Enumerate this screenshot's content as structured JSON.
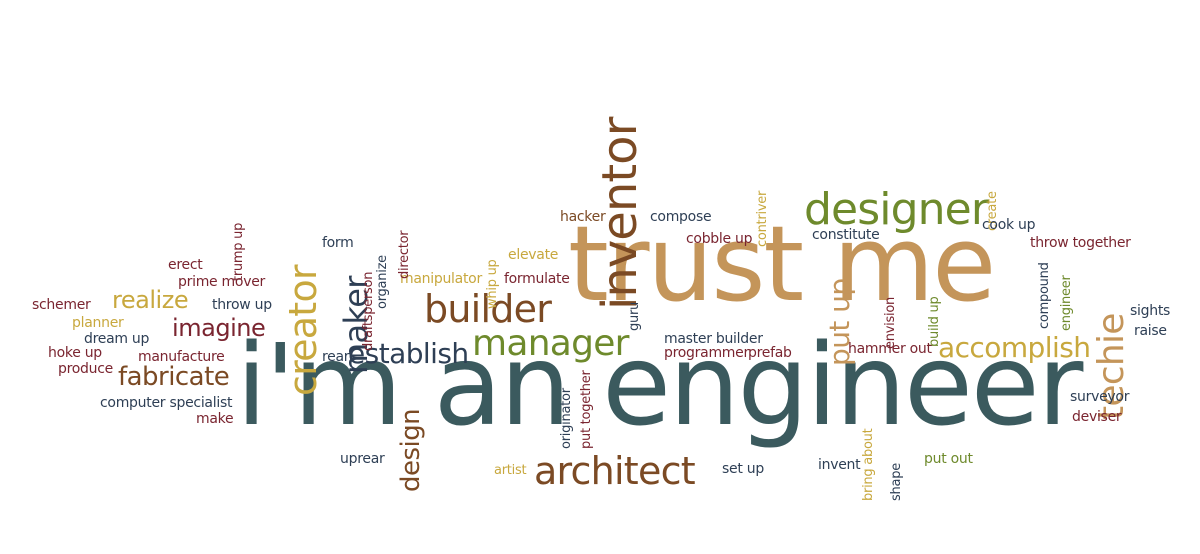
{
  "palette": {
    "slate": "#3b5a5e",
    "tan": "#c4955a",
    "brown": "#7b4a24",
    "maroon": "#7a2530",
    "olive": "#6e8a2c",
    "gold": "#c8a83e",
    "navy": "#2e3f55"
  },
  "words": [
    {
      "text": "i'm an engineer",
      "color": "slate",
      "rot": 0
    },
    {
      "text": "trust me",
      "color": "tan",
      "rot": 0
    },
    {
      "text": "inventor",
      "color": "brown",
      "rot": -90
    },
    {
      "text": "designer",
      "color": "olive",
      "rot": 0
    },
    {
      "text": "manager",
      "color": "olive",
      "rot": 0
    },
    {
      "text": "builder",
      "color": "brown",
      "rot": 0
    },
    {
      "text": "architect",
      "color": "brown",
      "rot": 0
    },
    {
      "text": "creator",
      "color": "gold",
      "rot": -90
    },
    {
      "text": "techie",
      "color": "tan",
      "rot": -90
    },
    {
      "text": "accomplish",
      "color": "gold",
      "rot": 0
    },
    {
      "text": "establish",
      "color": "navy",
      "rot": 0
    },
    {
      "text": "fabricate",
      "color": "brown",
      "rot": 0
    },
    {
      "text": "imagine",
      "color": "maroon",
      "rot": 0
    },
    {
      "text": "realize",
      "color": "gold",
      "rot": 0
    },
    {
      "text": "maker",
      "color": "navy",
      "rot": -90
    },
    {
      "text": "design",
      "color": "brown",
      "rot": -90
    },
    {
      "text": "put up",
      "color": "tan",
      "rot": -90
    },
    {
      "text": "hacker",
      "color": "brown",
      "rot": 0
    },
    {
      "text": "compose",
      "color": "navy",
      "rot": 0
    },
    {
      "text": "contriver",
      "color": "gold",
      "rot": -90
    },
    {
      "text": "create",
      "color": "gold",
      "rot": -90
    },
    {
      "text": "cook up",
      "color": "navy",
      "rot": 0
    },
    {
      "text": "constitute",
      "color": "navy",
      "rot": 0
    },
    {
      "text": "cobble up",
      "color": "maroon",
      "rot": 0
    },
    {
      "text": "throw together",
      "color": "maroon",
      "rot": 0
    },
    {
      "text": "compound",
      "color": "navy",
      "rot": -90
    },
    {
      "text": "engineer",
      "color": "olive",
      "rot": -90
    },
    {
      "text": "envision",
      "color": "maroon",
      "rot": -90
    },
    {
      "text": "build up",
      "color": "olive",
      "rot": -90
    },
    {
      "text": "sights",
      "color": "navy",
      "rot": 0
    },
    {
      "text": "raise",
      "color": "navy",
      "rot": 0
    },
    {
      "text": "hammer out",
      "color": "maroon",
      "rot": 0
    },
    {
      "text": "surveyor",
      "color": "navy",
      "rot": 0
    },
    {
      "text": "deviser",
      "color": "maroon",
      "rot": 0
    },
    {
      "text": "invent",
      "color": "navy",
      "rot": 0
    },
    {
      "text": "put out",
      "color": "olive",
      "rot": 0
    },
    {
      "text": "bring about",
      "color": "gold",
      "rot": -90
    },
    {
      "text": "shape",
      "color": "navy",
      "rot": -90
    },
    {
      "text": "set up",
      "color": "navy",
      "rot": 0
    },
    {
      "text": "artist",
      "color": "gold",
      "rot": 0
    },
    {
      "text": "uprear",
      "color": "navy",
      "rot": 0
    },
    {
      "text": "originator",
      "color": "navy",
      "rot": -90
    },
    {
      "text": "put together",
      "color": "maroon",
      "rot": -90
    },
    {
      "text": "master builder",
      "color": "navy",
      "rot": 0
    },
    {
      "text": "programmer",
      "color": "maroon",
      "rot": 0
    },
    {
      "text": "prefab",
      "color": "maroon",
      "rot": 0
    },
    {
      "text": "guru",
      "color": "navy",
      "rot": -90
    },
    {
      "text": "whip up",
      "color": "gold",
      "rot": -90
    },
    {
      "text": "elevate",
      "color": "gold",
      "rot": 0
    },
    {
      "text": "formulate",
      "color": "maroon",
      "rot": 0
    },
    {
      "text": "manipulator",
      "color": "gold",
      "rot": 0
    },
    {
      "text": "director",
      "color": "maroon",
      "rot": -90
    },
    {
      "text": "organize",
      "color": "navy",
      "rot": -90
    },
    {
      "text": "draftsperson",
      "color": "maroon",
      "rot": -90
    },
    {
      "text": "form",
      "color": "navy",
      "rot": 0
    },
    {
      "text": "rear",
      "color": "navy",
      "rot": 0
    },
    {
      "text": "trump up",
      "color": "maroon",
      "rot": -90
    },
    {
      "text": "throw up",
      "color": "navy",
      "rot": 0
    },
    {
      "text": "erect",
      "color": "maroon",
      "rot": 0
    },
    {
      "text": "prime mover",
      "color": "maroon",
      "rot": 0
    },
    {
      "text": "schemer",
      "color": "maroon",
      "rot": 0
    },
    {
      "text": "planner",
      "color": "gold",
      "rot": 0
    },
    {
      "text": "dream up",
      "color": "navy",
      "rot": 0
    },
    {
      "text": "hoke up",
      "color": "maroon",
      "rot": 0
    },
    {
      "text": "manufacture",
      "color": "maroon",
      "rot": 0
    },
    {
      "text": "produce",
      "color": "maroon",
      "rot": 0
    },
    {
      "text": "computer specialist",
      "color": "navy",
      "rot": 0
    },
    {
      "text": "make",
      "color": "maroon",
      "rot": 0
    }
  ]
}
